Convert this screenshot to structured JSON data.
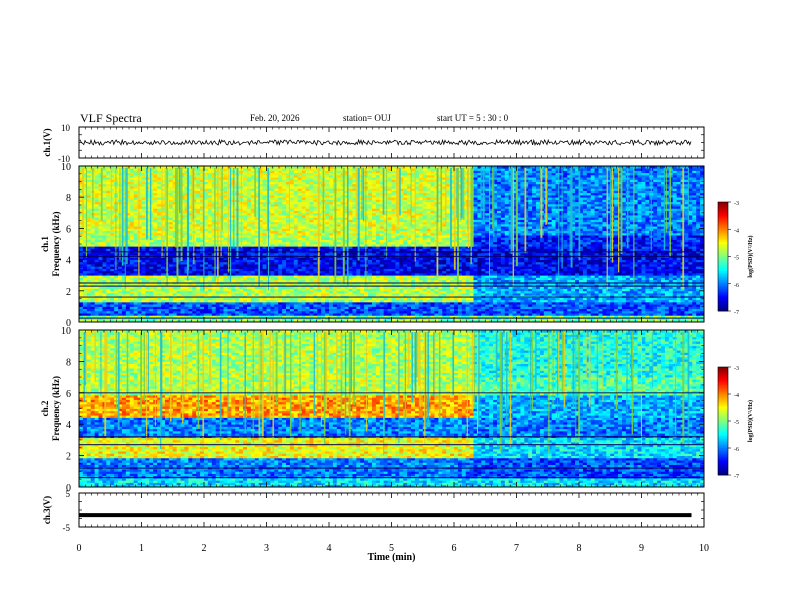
{
  "header": {
    "title": "VLF Spectra",
    "date": "Feb. 20, 2026",
    "station": "station= OUJ",
    "start": "start  UT =   5  : 30 : 0"
  },
  "chart_data": [
    {
      "type": "line",
      "panel": "ch1-waveform",
      "ylabel": "ch.1(V)",
      "ylim": [
        -10,
        10
      ],
      "yticks": [
        "10",
        "-10"
      ],
      "baseline": 0,
      "color": "#000000"
    },
    {
      "type": "heatmap",
      "panel": "ch1-spectrogram",
      "ylabel_line1": "ch.1",
      "ylabel_line2": "Frequency  (kHz)",
      "ylim": [
        0,
        10
      ],
      "yticks": [
        "0",
        "2",
        "4",
        "6",
        "8",
        "10"
      ],
      "xlim": [
        0,
        10
      ],
      "change_time_min": 6.3,
      "colorbar": {
        "label": "log(PSD)(V²/Hz)",
        "range": [
          -7,
          -3
        ],
        "ticks": [
          "-3",
          "-4",
          "-5",
          "-6",
          "-7"
        ]
      }
    },
    {
      "type": "heatmap",
      "panel": "ch2-spectrogram",
      "ylabel_line1": "ch.2",
      "ylabel_line2": "Frequency  (kHz)",
      "ylim": [
        0,
        10
      ],
      "yticks": [
        "0",
        "2",
        "4",
        "6",
        "8",
        "10"
      ],
      "xlim": [
        0,
        10
      ],
      "change_time_min": 6.3,
      "colorbar": {
        "label": "log(PSD)(V²/Hz)",
        "range": [
          -7,
          -3
        ],
        "ticks": [
          "-3",
          "-4",
          "-5",
          "-6",
          "-7"
        ]
      }
    },
    {
      "type": "line",
      "panel": "ch3-waveform",
      "ylabel": "ch.3(V)",
      "ylim": [
        -5,
        5
      ],
      "yticks": [
        "5",
        "-5"
      ],
      "x": [
        0,
        9.8
      ],
      "y": [
        -1.5,
        -1.5
      ],
      "color": "#000000"
    }
  ],
  "xaxis": {
    "label": "Time  (min)",
    "range": [
      0,
      10
    ],
    "ticks": [
      "0",
      "1",
      "2",
      "3",
      "4",
      "5",
      "6",
      "7",
      "8",
      "9",
      "10"
    ]
  }
}
